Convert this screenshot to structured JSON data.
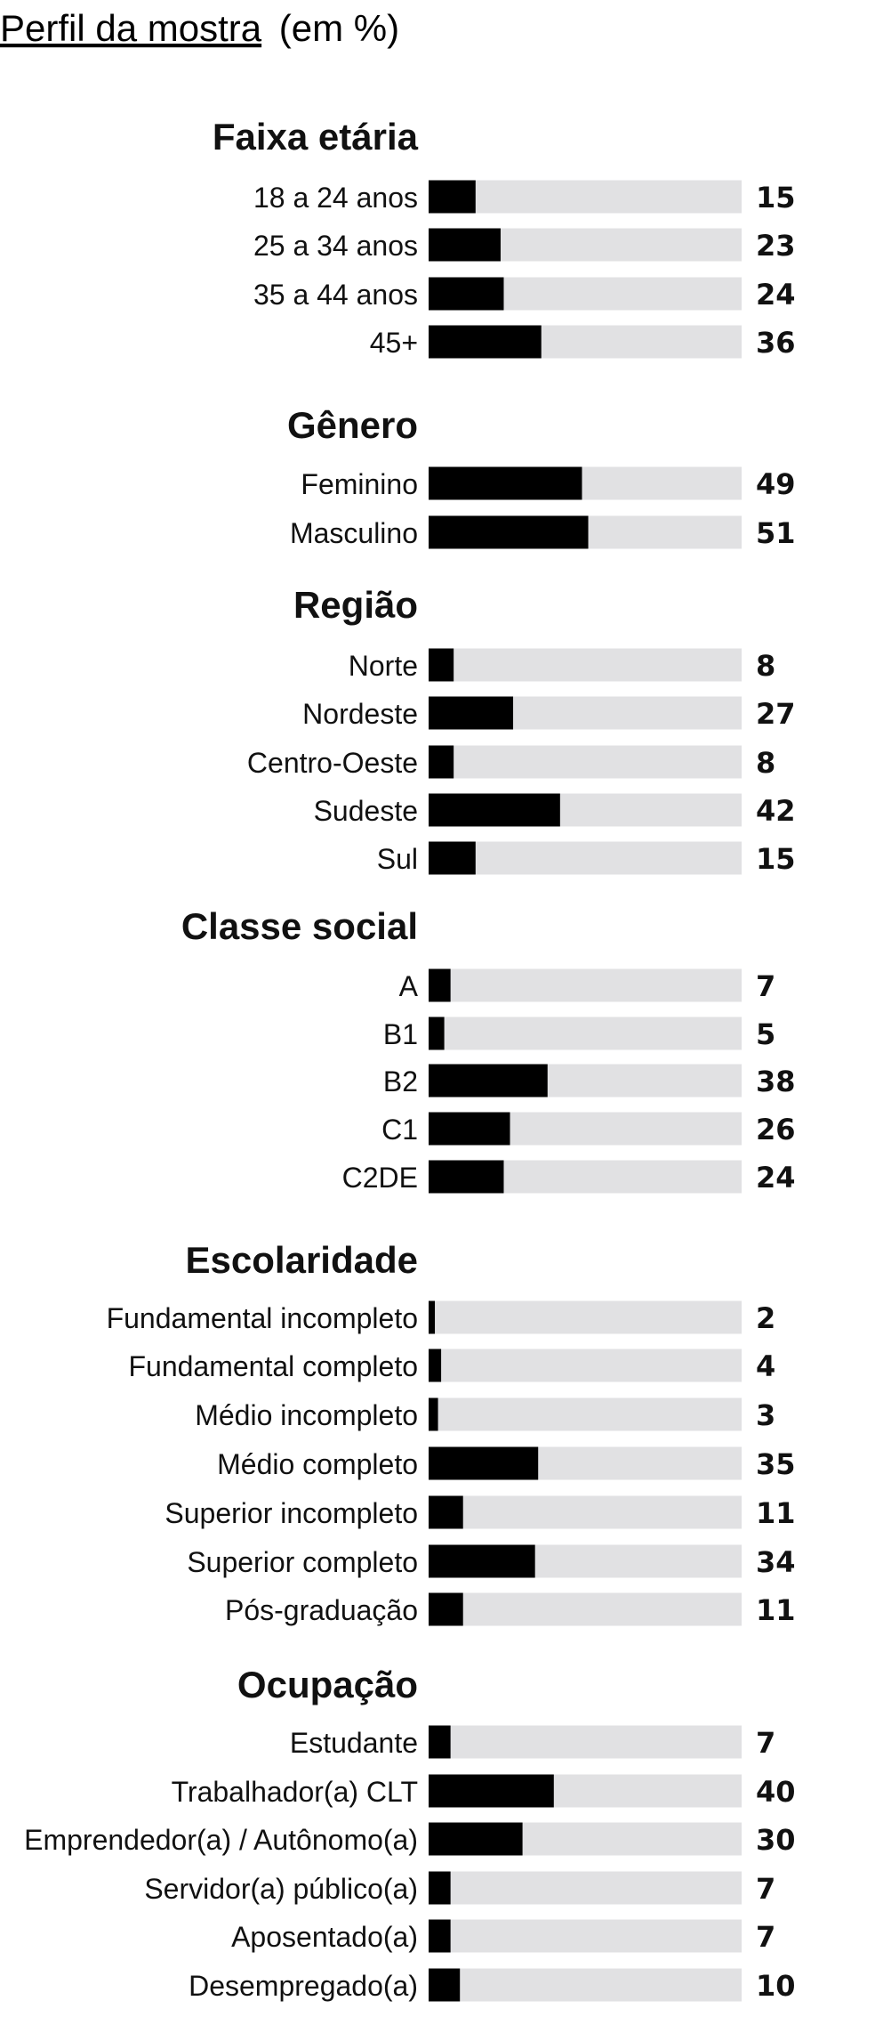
{
  "chart_data": {
    "type": "bar",
    "orientation": "horizontal",
    "title": "Perfil da mostra",
    "subtitle": "(em %)",
    "xlim": [
      0,
      100
    ],
    "colors": {
      "bar": "#000000",
      "track": "#e1e1e3",
      "text": "#111111"
    },
    "groups": [
      {
        "name": "Faixa etária",
        "categories": [
          "18 a 24 anos",
          "25 a 34 anos",
          "35 a 44 anos",
          "45+"
        ],
        "values": [
          15,
          23,
          24,
          36
        ]
      },
      {
        "name": "Gênero",
        "categories": [
          "Feminino",
          "Masculino"
        ],
        "values": [
          49,
          51
        ]
      },
      {
        "name": "Região",
        "categories": [
          "Norte",
          "Nordeste",
          "Centro-Oeste",
          "Sudeste",
          "Sul"
        ],
        "values": [
          8,
          27,
          8,
          42,
          15
        ]
      },
      {
        "name": "Classe social",
        "categories": [
          "A",
          "B1",
          "B2",
          "C1",
          "C2DE"
        ],
        "values": [
          7,
          5,
          38,
          26,
          24
        ]
      },
      {
        "name": "Escolaridade",
        "categories": [
          "Fundamental incompleto",
          "Fundamental completo",
          "Médio incompleto",
          "Médio completo",
          "Superior incompleto",
          "Superior completo",
          "Pós-graduação"
        ],
        "values": [
          2,
          4,
          3,
          35,
          11,
          34,
          11
        ]
      },
      {
        "name": "Ocupação",
        "categories": [
          "Estudante",
          "Trabalhador(a) CLT",
          "Emprendedor(a) / Autônomo(a)",
          "Servidor(a) público(a)",
          "Aposentado(a)",
          "Desempregado(a)"
        ],
        "values": [
          7,
          40,
          30,
          7,
          7,
          10
        ]
      }
    ]
  }
}
